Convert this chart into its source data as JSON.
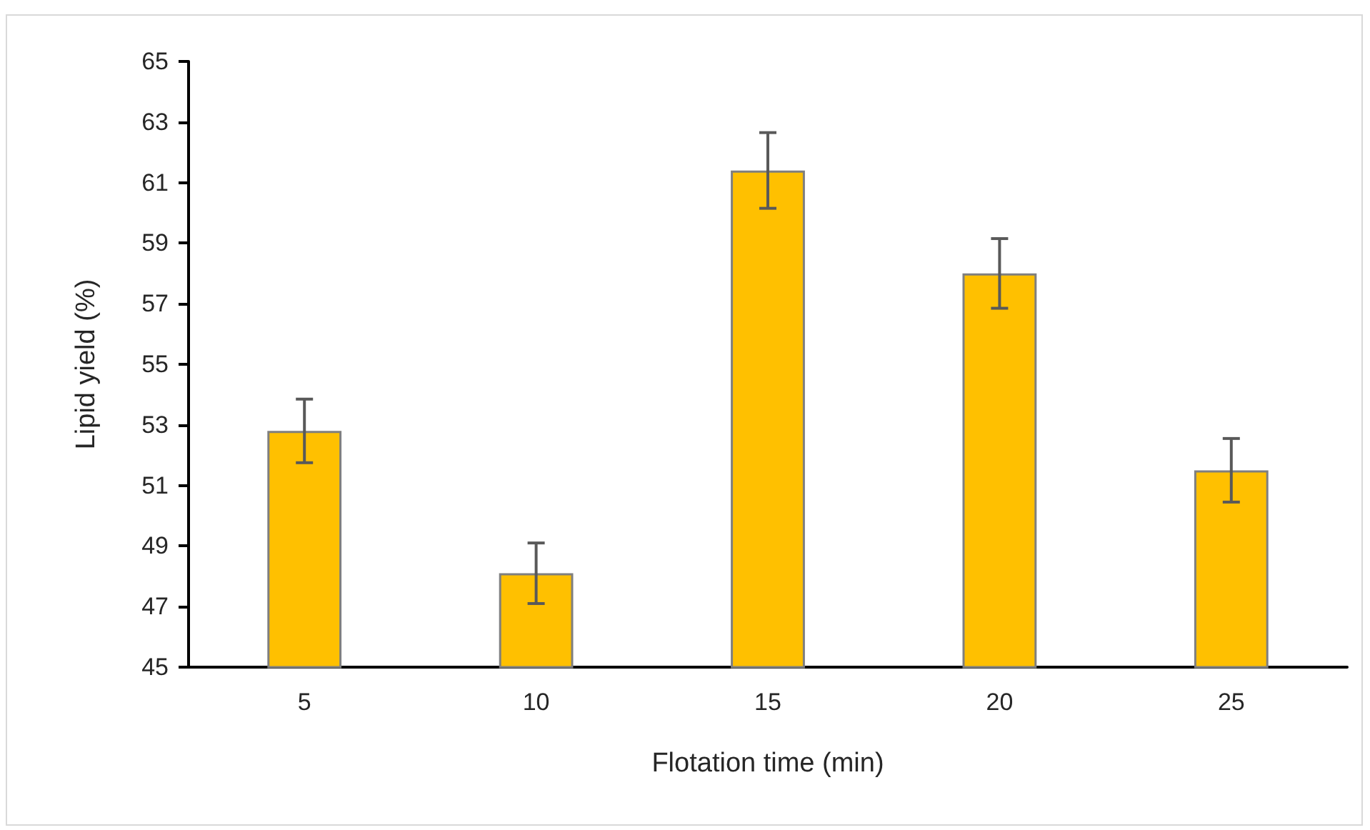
{
  "chart_data": {
    "type": "bar",
    "xlabel": "Flotation time (min)",
    "ylabel": "Lipid yield (%)",
    "categories": [
      "5",
      "10",
      "15",
      "20",
      "25"
    ],
    "series": [
      {
        "color": "#ffc000",
        "values": [
          52.8,
          48.1,
          61.4,
          58.0,
          51.5
        ],
        "errors": [
          1.05,
          1.0,
          1.25,
          1.15,
          1.05
        ]
      }
    ],
    "ylim": [
      45,
      65
    ],
    "yticks": [
      45,
      47,
      49,
      51,
      53,
      55,
      57,
      59,
      61,
      63,
      65
    ],
    "grid": false
  }
}
